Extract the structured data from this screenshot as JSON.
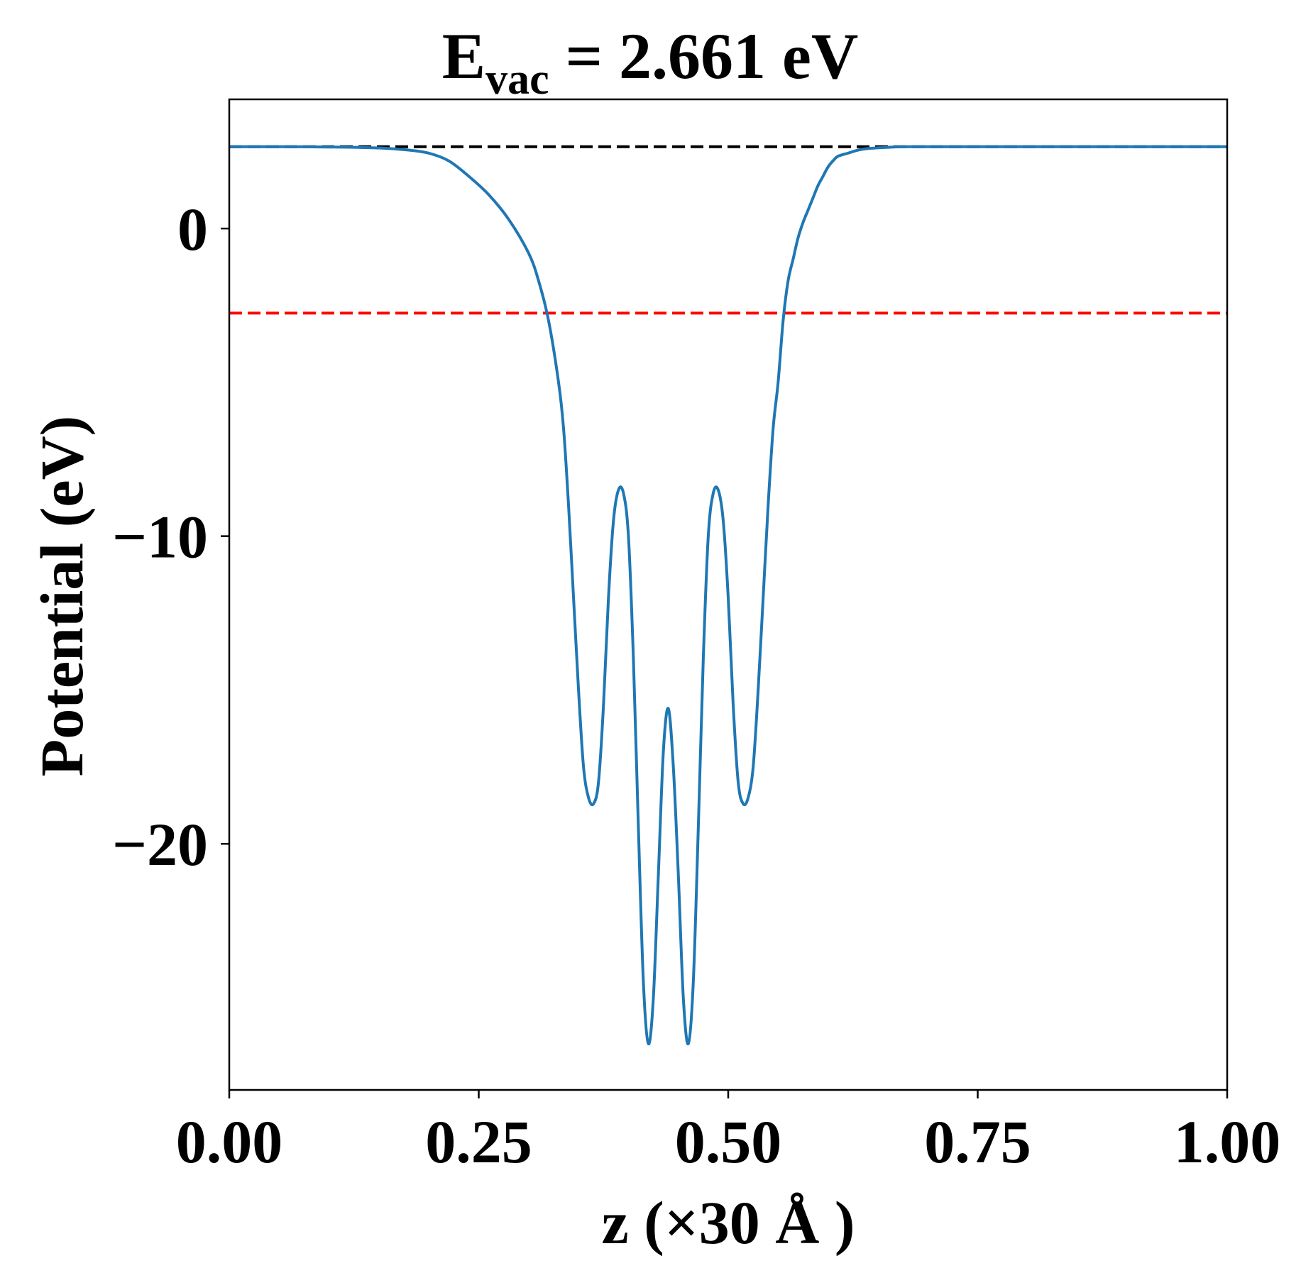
{
  "chart_data": {
    "type": "line",
    "title": "E",
    "title_subscript": "vac",
    "title_value": " = 2.661 eV",
    "xlabel": "z (×30 Å )",
    "ylabel": "Potential (eV)",
    "xlim": [
      0.0,
      1.0
    ],
    "ylim": [
      -28.0,
      4.2
    ],
    "x_ticks": [
      0.0,
      0.25,
      0.5,
      0.75,
      1.0
    ],
    "x_tick_labels": [
      "0.00",
      "0.25",
      "0.50",
      "0.75",
      "1.00"
    ],
    "y_ticks": [
      0,
      -10,
      -20
    ],
    "y_tick_labels": [
      "0",
      "−10",
      "−20"
    ],
    "grid": false,
    "reference_lines": [
      {
        "name": "vacuum-level-line",
        "y": 2.661,
        "color": "#000000",
        "style": "dashed"
      },
      {
        "name": "fermi-level-line",
        "y": -2.75,
        "color": "#ff0000",
        "style": "dashed"
      }
    ],
    "series": [
      {
        "name": "potential",
        "color": "#1f77b4",
        "x": [
          0.0,
          0.05,
          0.1,
          0.15,
          0.18,
          0.2,
          0.22,
          0.24,
          0.26,
          0.28,
          0.3,
          0.31,
          0.32,
          0.33,
          0.335,
          0.34,
          0.345,
          0.35,
          0.355,
          0.36,
          0.365,
          0.37,
          0.375,
          0.38,
          0.385,
          0.39,
          0.395,
          0.4,
          0.405,
          0.41,
          0.415,
          0.42,
          0.425,
          0.43,
          0.435,
          0.44,
          0.445,
          0.45,
          0.455,
          0.46,
          0.465,
          0.47,
          0.475,
          0.48,
          0.485,
          0.49,
          0.495,
          0.5,
          0.505,
          0.51,
          0.515,
          0.52,
          0.525,
          0.53,
          0.535,
          0.54,
          0.545,
          0.55,
          0.555,
          0.56,
          0.565,
          0.57,
          0.575,
          0.58,
          0.585,
          0.59,
          0.595,
          0.6,
          0.605,
          0.61,
          0.62,
          0.63,
          0.64,
          0.66,
          0.68,
          0.7,
          0.72,
          0.74,
          0.76,
          0.78,
          0.82,
          0.86,
          0.9,
          0.95,
          1.0
        ],
        "values": [
          2.66,
          2.66,
          2.65,
          2.62,
          2.55,
          2.45,
          2.2,
          1.7,
          1.1,
          0.3,
          -0.8,
          -1.7,
          -3.0,
          -5.0,
          -6.5,
          -9.0,
          -12.0,
          -15.0,
          -17.5,
          -18.5,
          -18.7,
          -18.0,
          -15.5,
          -12.0,
          -9.5,
          -8.5,
          -8.6,
          -10.0,
          -14.0,
          -19.5,
          -24.5,
          -26.5,
          -25.0,
          -21.0,
          -17.0,
          -15.6,
          -17.5,
          -21.0,
          -25.0,
          -26.5,
          -24.5,
          -19.5,
          -14.0,
          -10.0,
          -8.6,
          -8.5,
          -9.5,
          -12.0,
          -15.5,
          -18.0,
          -18.7,
          -18.5,
          -17.5,
          -15.0,
          -12.0,
          -9.0,
          -6.5,
          -5.0,
          -3.0,
          -1.7,
          -1.0,
          -0.3,
          0.2,
          0.6,
          1.0,
          1.4,
          1.7,
          2.0,
          2.2,
          2.35,
          2.45,
          2.55,
          2.6,
          2.64,
          2.66,
          2.66,
          2.66,
          2.66,
          2.66,
          2.66,
          2.66,
          2.66,
          2.66,
          2.66,
          2.66
        ]
      }
    ]
  }
}
